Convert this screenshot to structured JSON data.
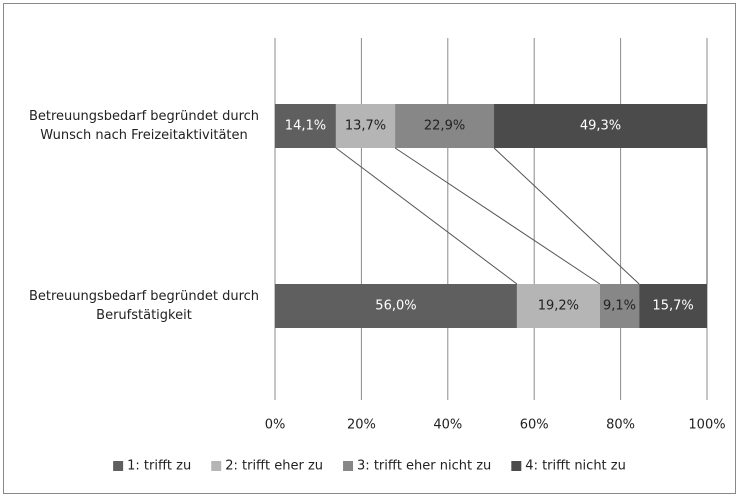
{
  "chart_data": {
    "type": "stacked-bar-horizontal",
    "categories": [
      "Betreuungsbedarf begründet durch Wunsch nach Freizeitaktivitäten",
      "Betreuungsbedarf begründet durch Berufstätigkeit"
    ],
    "series": [
      {
        "name": "1: trifft zu",
        "color": "#5f5f5f",
        "label_color": "#ffffff",
        "values": [
          14.1,
          56.0
        ],
        "value_labels": [
          "14,1%",
          "56,0%"
        ]
      },
      {
        "name": "2: trifft eher zu",
        "color": "#b5b5b5",
        "label_color": "#222222",
        "values": [
          13.7,
          19.2
        ],
        "value_labels": [
          "13,7%",
          "19,2%"
        ]
      },
      {
        "name": "3: trifft eher nicht zu",
        "color": "#878787",
        "label_color": "#222222",
        "values": [
          22.9,
          9.1
        ],
        "value_labels": [
          "22,9%",
          "9,1%"
        ]
      },
      {
        "name": "4: trifft nicht zu",
        "color": "#4b4b4b",
        "label_color": "#ffffff",
        "values": [
          49.3,
          15.7
        ],
        "value_labels": [
          "49,3%",
          "15,7%"
        ]
      }
    ],
    "xlim": [
      0,
      100
    ],
    "xticks": [
      {
        "value": 0,
        "label": "0%"
      },
      {
        "value": 20,
        "label": "20%"
      },
      {
        "value": 40,
        "label": "40%"
      },
      {
        "value": 60,
        "label": "60%"
      },
      {
        "value": 80,
        "label": "80%"
      },
      {
        "value": 100,
        "label": "100%"
      }
    ],
    "grid": true,
    "series_lines": true,
    "legend": "bottom"
  }
}
